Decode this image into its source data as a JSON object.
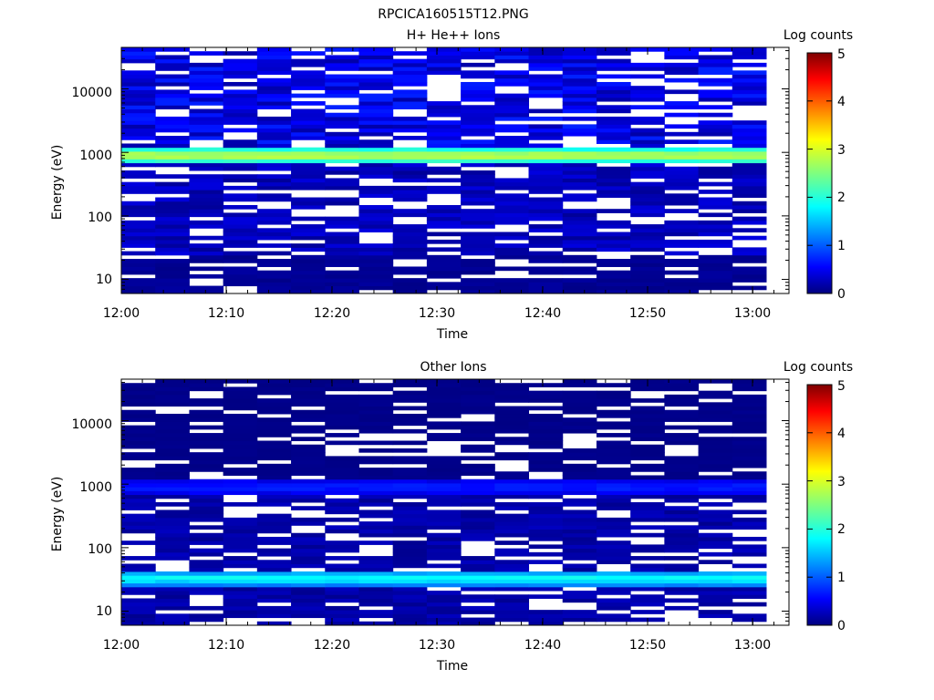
{
  "figure_title": "RPCICA160515T12.PNG",
  "chart_data": [
    {
      "type": "heatmap",
      "title": "H+ He++ Ions",
      "xlabel": "Time",
      "ylabel": "Energy (eV)",
      "x_ticks": [
        "12:00",
        "12:10",
        "12:20",
        "12:30",
        "12:40",
        "12:50",
        "13:00"
      ],
      "x_range": [
        "12:00",
        "13:03"
      ],
      "y_scale": "log",
      "y_ticks": [
        "10",
        "100",
        "1000",
        "10000"
      ],
      "y_range": [
        6,
        45000
      ],
      "colorbar": {
        "label": "Log counts",
        "ticks": [
          "0",
          "1",
          "2",
          "3",
          "4",
          "5"
        ],
        "range": [
          0,
          5
        ]
      },
      "features": [
        {
          "description": "energy band peak",
          "energy_eV": 900,
          "log_counts": 3.0
        },
        {
          "description": "background above 1000 eV",
          "energy_range_eV": [
            1000,
            45000
          ],
          "log_counts": 0.5
        },
        {
          "description": "background below 1000 eV",
          "energy_range_eV": [
            25,
            700
          ],
          "log_counts": 0.3
        },
        {
          "description": "sparse low-energy counts",
          "energy_range_eV": [
            6,
            25
          ],
          "log_counts": 0.1
        }
      ]
    },
    {
      "type": "heatmap",
      "title": "Other Ions",
      "xlabel": "Time",
      "ylabel": "Energy (eV)",
      "x_ticks": [
        "12:00",
        "12:10",
        "12:20",
        "12:30",
        "12:40",
        "12:50",
        "13:00"
      ],
      "x_range": [
        "12:00",
        "13:03"
      ],
      "y_scale": "log",
      "y_ticks": [
        "10",
        "100",
        "1000",
        "10000"
      ],
      "y_range": [
        6,
        45000
      ],
      "colorbar": {
        "label": "Log counts",
        "ticks": [
          "0",
          "1",
          "2",
          "3",
          "4",
          "5"
        ],
        "range": [
          0,
          5
        ]
      },
      "features": [
        {
          "description": "energy band peak",
          "energy_eV": 33,
          "log_counts": 2.0
        },
        {
          "description": "band near 1000 eV",
          "energy_eV": 900,
          "log_counts": 0.8
        },
        {
          "description": "sparse high-energy counts",
          "energy_range_eV": [
            1200,
            45000
          ],
          "log_counts": 0.05
        },
        {
          "description": "background below 1000 eV",
          "energy_range_eV": [
            6,
            700
          ],
          "log_counts": 0.2
        }
      ]
    }
  ]
}
